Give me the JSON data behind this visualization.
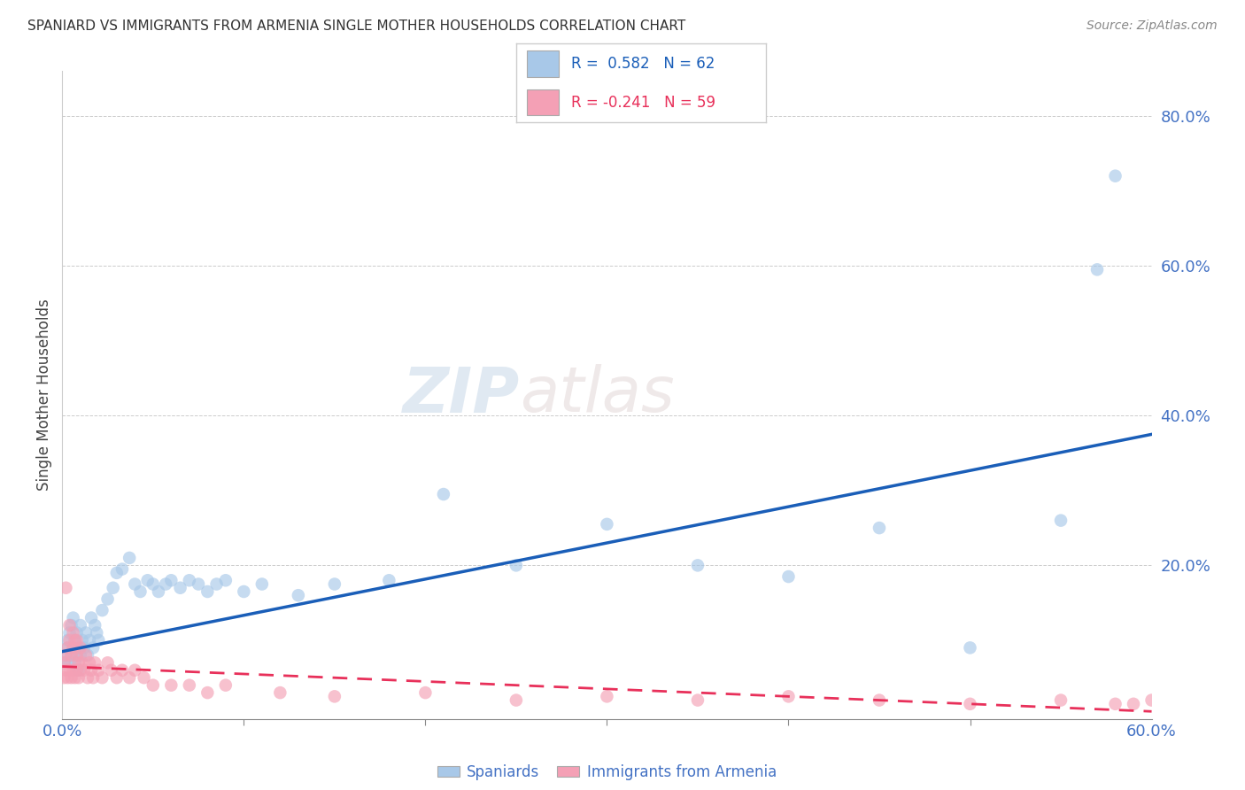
{
  "title": "SPANIARD VS IMMIGRANTS FROM ARMENIA SINGLE MOTHER HOUSEHOLDS CORRELATION CHART",
  "source": "Source: ZipAtlas.com",
  "ylabel": "Single Mother Households",
  "xlim": [
    0.0,
    0.6
  ],
  "ylim": [
    -0.005,
    0.86
  ],
  "blue_R": 0.582,
  "blue_N": 62,
  "pink_R": -0.241,
  "pink_N": 59,
  "blue_scatter_color": "#a8c8e8",
  "pink_scatter_color": "#f4a0b5",
  "blue_line_color": "#1a5eb8",
  "pink_line_color": "#e8305a",
  "tick_color": "#4472c4",
  "blue_x": [
    0.001,
    0.002,
    0.003,
    0.003,
    0.004,
    0.004,
    0.005,
    0.005,
    0.006,
    0.006,
    0.007,
    0.007,
    0.008,
    0.008,
    0.009,
    0.009,
    0.01,
    0.01,
    0.011,
    0.012,
    0.013,
    0.014,
    0.015,
    0.016,
    0.017,
    0.018,
    0.019,
    0.02,
    0.022,
    0.025,
    0.028,
    0.03,
    0.033,
    0.037,
    0.04,
    0.043,
    0.047,
    0.05,
    0.053,
    0.057,
    0.06,
    0.065,
    0.07,
    0.075,
    0.08,
    0.085,
    0.09,
    0.1,
    0.11,
    0.13,
    0.15,
    0.18,
    0.21,
    0.25,
    0.3,
    0.35,
    0.4,
    0.45,
    0.5,
    0.55,
    0.57,
    0.58
  ],
  "blue_y": [
    0.07,
    0.08,
    0.09,
    0.1,
    0.07,
    0.11,
    0.08,
    0.12,
    0.09,
    0.13,
    0.07,
    0.1,
    0.08,
    0.11,
    0.06,
    0.09,
    0.08,
    0.12,
    0.1,
    0.09,
    0.11,
    0.08,
    0.1,
    0.13,
    0.09,
    0.12,
    0.11,
    0.1,
    0.14,
    0.155,
    0.17,
    0.19,
    0.195,
    0.21,
    0.175,
    0.165,
    0.18,
    0.175,
    0.165,
    0.175,
    0.18,
    0.17,
    0.18,
    0.175,
    0.165,
    0.175,
    0.18,
    0.165,
    0.175,
    0.16,
    0.175,
    0.18,
    0.295,
    0.2,
    0.255,
    0.2,
    0.185,
    0.25,
    0.09,
    0.26,
    0.595,
    0.72
  ],
  "pink_x": [
    0.001,
    0.001,
    0.002,
    0.002,
    0.003,
    0.003,
    0.004,
    0.004,
    0.005,
    0.005,
    0.006,
    0.006,
    0.007,
    0.007,
    0.008,
    0.008,
    0.009,
    0.009,
    0.01,
    0.01,
    0.011,
    0.012,
    0.013,
    0.014,
    0.015,
    0.016,
    0.017,
    0.018,
    0.02,
    0.022,
    0.025,
    0.027,
    0.03,
    0.033,
    0.037,
    0.04,
    0.045,
    0.05,
    0.06,
    0.07,
    0.08,
    0.09,
    0.12,
    0.15,
    0.2,
    0.25,
    0.3,
    0.35,
    0.4,
    0.45,
    0.5,
    0.55,
    0.58,
    0.59,
    0.6,
    0.002,
    0.004,
    0.006,
    0.008
  ],
  "pink_y": [
    0.05,
    0.07,
    0.06,
    0.08,
    0.05,
    0.09,
    0.06,
    0.1,
    0.05,
    0.08,
    0.06,
    0.09,
    0.05,
    0.1,
    0.06,
    0.08,
    0.05,
    0.07,
    0.06,
    0.09,
    0.07,
    0.06,
    0.08,
    0.05,
    0.07,
    0.06,
    0.05,
    0.07,
    0.06,
    0.05,
    0.07,
    0.06,
    0.05,
    0.06,
    0.05,
    0.06,
    0.05,
    0.04,
    0.04,
    0.04,
    0.03,
    0.04,
    0.03,
    0.025,
    0.03,
    0.02,
    0.025,
    0.02,
    0.025,
    0.02,
    0.015,
    0.02,
    0.015,
    0.015,
    0.02,
    0.17,
    0.12,
    0.11,
    0.1
  ],
  "blue_trend_x": [
    0.0,
    0.6
  ],
  "blue_trend_y": [
    0.085,
    0.375
  ],
  "pink_trend_x": [
    0.0,
    0.6
  ],
  "pink_trend_y": [
    0.065,
    0.005
  ]
}
